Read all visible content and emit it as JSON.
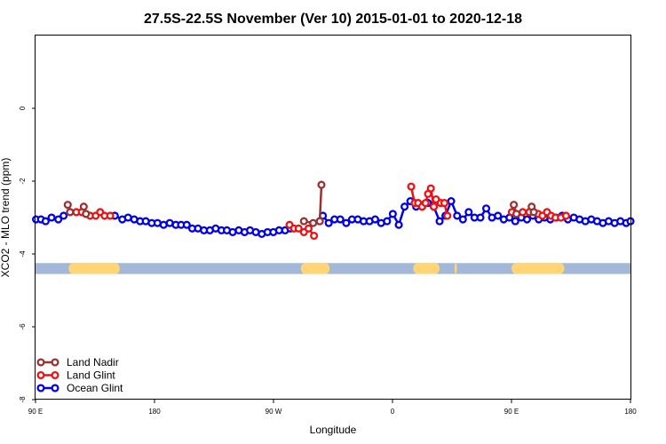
{
  "chart_data": {
    "type": "line",
    "title": "27.5S-22.5S November (Ver 10)   2015-01-01 to 2020-12-18",
    "xlabel": "Longitude",
    "ylabel": "XCO2 - MLO trend (ppm)",
    "xlim": [
      90,
      450
    ],
    "ylim": [
      -8,
      2
    ],
    "x_ticks": [
      {
        "value": 90,
        "label": "90 E"
      },
      {
        "value": 162,
        "label": "180"
      },
      {
        "value": 234,
        "label": "90 W"
      },
      {
        "value": 306,
        "label": "0"
      },
      {
        "value": 378,
        "label": "90 E"
      },
      {
        "value": 450,
        "label": "180"
      }
    ],
    "y_ticks": [
      {
        "value": 0,
        "label": "0"
      },
      {
        "value": -2,
        "label": "-2"
      },
      {
        "value": -4,
        "label": "-4"
      },
      {
        "value": -6,
        "label": "-6"
      },
      {
        "value": -8,
        "label": "-8"
      }
    ],
    "legend_position": "bottom-left",
    "series": [
      {
        "name": "Land Nadir",
        "color": "#993333",
        "segments": [
          [
            [
              109.5,
              -2.65
            ],
            [
              110.9,
              -2.85
            ]
          ],
          [
            [
              119.2,
              -2.7
            ],
            [
              120.5,
              -2.9
            ]
          ],
          [
            [
              252.4,
              -3.1
            ],
            [
              258.0,
              -3.15
            ]
          ],
          [
            [
              262.0,
              -3.1
            ],
            [
              263.0,
              -2.1
            ]
          ],
          [
            [
              379.4,
              -2.65
            ],
            [
              381.0,
              -2.9
            ]
          ],
          [
            [
              390.2,
              -2.7
            ],
            [
              391.5,
              -2.85
            ]
          ]
        ]
      },
      {
        "name": "Land Glint",
        "color": "#ee1111",
        "segments": [
          [
            [
              110.9,
              -2.85
            ],
            [
              114.7,
              -2.85
            ],
            [
              118.0,
              -2.85
            ],
            [
              120.5,
              -2.9
            ],
            [
              123.0,
              -2.95
            ],
            [
              126.4,
              -2.95
            ],
            [
              129.1,
              -2.85
            ],
            [
              131.8,
              -2.95
            ],
            [
              135.2,
              -2.95
            ]
          ],
          [
            [
              243.7,
              -3.2
            ],
            [
              246.4,
              -3.3
            ],
            [
              249.2,
              -3.3
            ],
            [
              252.4,
              -3.4
            ],
            [
              255.2,
              -3.3
            ],
            [
              258.5,
              -3.5
            ]
          ],
          [
            [
              317.3,
              -2.15
            ],
            [
              319.4,
              -2.6
            ],
            [
              321.5,
              -2.6
            ],
            [
              323.9,
              -2.7
            ],
            [
              326.0,
              -2.6
            ],
            [
              327.5,
              -2.35
            ],
            [
              329.2,
              -2.2
            ],
            [
              331.0,
              -2.7
            ],
            [
              332.3,
              -2.5
            ],
            [
              335.2,
              -2.6
            ],
            [
              337.4,
              -2.6
            ],
            [
              339.2,
              -2.95
            ]
          ],
          [
            [
              378.2,
              -2.85
            ],
            [
              381.0,
              -2.9
            ],
            [
              384.8,
              -2.85
            ],
            [
              388.8,
              -2.85
            ],
            [
              391.5,
              -2.85
            ],
            [
              394.1,
              -2.9
            ],
            [
              396.7,
              -2.95
            ],
            [
              399.5,
              -2.85
            ],
            [
              402.0,
              -2.95
            ],
            [
              404.6,
              -3.0
            ],
            [
              407.9,
              -3.0
            ],
            [
              411.0,
              -2.95
            ]
          ]
        ]
      },
      {
        "name": "Ocean Glint",
        "color": "#0000ee",
        "segments": [
          [
            [
              90.3,
              -3.05
            ],
            [
              93.3,
              -3.05
            ],
            [
              96.1,
              -3.1
            ],
            [
              99.7,
              -3.0
            ],
            [
              103.8,
              -3.05
            ],
            [
              107.0,
              -2.95
            ]
          ],
          [
            [
              138.0,
              -2.95
            ],
            [
              142.5,
              -3.05
            ],
            [
              146.0,
              -3.0
            ],
            [
              149.7,
              -3.05
            ],
            [
              153.3,
              -3.1
            ],
            [
              156.7,
              -3.1
            ],
            [
              160.3,
              -3.15
            ],
            [
              163.8,
              -3.15
            ],
            [
              167.5,
              -3.2
            ],
            [
              171.2,
              -3.15
            ],
            [
              174.9,
              -3.2
            ],
            [
              178.1,
              -3.2
            ],
            [
              181.5,
              -3.2
            ],
            [
              184.8,
              -3.3
            ],
            [
              188.3,
              -3.3
            ],
            [
              191.9,
              -3.35
            ],
            [
              195.5,
              -3.35
            ],
            [
              199.0,
              -3.3
            ],
            [
              202.5,
              -3.35
            ],
            [
              205.8,
              -3.35
            ],
            [
              209.3,
              -3.4
            ],
            [
              213.0,
              -3.35
            ],
            [
              216.5,
              -3.4
            ],
            [
              219.8,
              -3.35
            ],
            [
              223.3,
              -3.4
            ],
            [
              226.9,
              -3.45
            ],
            [
              230.4,
              -3.4
            ],
            [
              233.9,
              -3.4
            ],
            [
              237.4,
              -3.35
            ],
            [
              241.0,
              -3.35
            ],
            [
              244.2,
              -3.3
            ]
          ],
          [
            [
              262.0,
              -3.1
            ],
            [
              263.9,
              -2.95
            ],
            [
              267.4,
              -3.15
            ],
            [
              270.9,
              -3.05
            ],
            [
              274.4,
              -3.05
            ],
            [
              278.0,
              -3.15
            ],
            [
              281.5,
              -3.05
            ],
            [
              285.0,
              -3.05
            ],
            [
              288.5,
              -3.1
            ],
            [
              292.1,
              -3.1
            ],
            [
              295.5,
              -3.05
            ],
            [
              299.1,
              -3.15
            ],
            [
              302.7,
              -3.1
            ],
            [
              306.2,
              -2.9
            ],
            [
              309.8,
              -3.2
            ],
            [
              313.3,
              -2.7
            ],
            [
              316.8,
              -2.55
            ],
            [
              320.3,
              -2.7
            ],
            [
              323.9,
              -2.7
            ],
            [
              327.5,
              -2.6
            ],
            [
              331.0,
              -2.7
            ],
            [
              334.5,
              -3.1
            ],
            [
              338.0,
              -2.95
            ],
            [
              341.5,
              -2.55
            ],
            [
              345.1,
              -2.95
            ],
            [
              348.6,
              -3.05
            ],
            [
              352.1,
              -2.85
            ],
            [
              355.6,
              -3.0
            ],
            [
              359.2,
              -3.0
            ],
            [
              362.7,
              -2.75
            ],
            [
              366.2,
              -3.0
            ],
            [
              369.8,
              -2.95
            ],
            [
              373.3,
              -3.05
            ],
            [
              376.8,
              -3.0
            ],
            [
              380.3,
              -3.1
            ],
            [
              383.9,
              -3.0
            ],
            [
              387.4,
              -3.05
            ],
            [
              390.9,
              -2.95
            ],
            [
              394.5,
              -3.05
            ],
            [
              398.0,
              -3.0
            ],
            [
              401.5,
              -3.05
            ],
            [
              405.1,
              -3.0
            ],
            [
              408.6,
              -2.95
            ],
            [
              412.1,
              -3.05
            ],
            [
              415.7,
              -3.0
            ],
            [
              419.2,
              -3.05
            ],
            [
              422.7,
              -3.1
            ],
            [
              426.3,
              -3.05
            ],
            [
              429.8,
              -3.1
            ],
            [
              433.3,
              -3.15
            ],
            [
              436.8,
              -3.1
            ],
            [
              440.4,
              -3.15
            ],
            [
              443.9,
              -3.1
            ],
            [
              447.4,
              -3.15
            ],
            [
              450.0,
              -3.1
            ]
          ]
        ]
      }
    ],
    "land_ocean_band": {
      "y_range": [
        -4.55,
        -4.25
      ],
      "ocean_color": "#a3b8d8",
      "land_color": "#ffd575",
      "land_ranges": [
        [
          110,
          141
        ],
        [
          250.5,
          268
        ],
        [
          318.5,
          334.5
        ],
        [
          343.5,
          345
        ],
        [
          378,
          410
        ]
      ]
    }
  }
}
